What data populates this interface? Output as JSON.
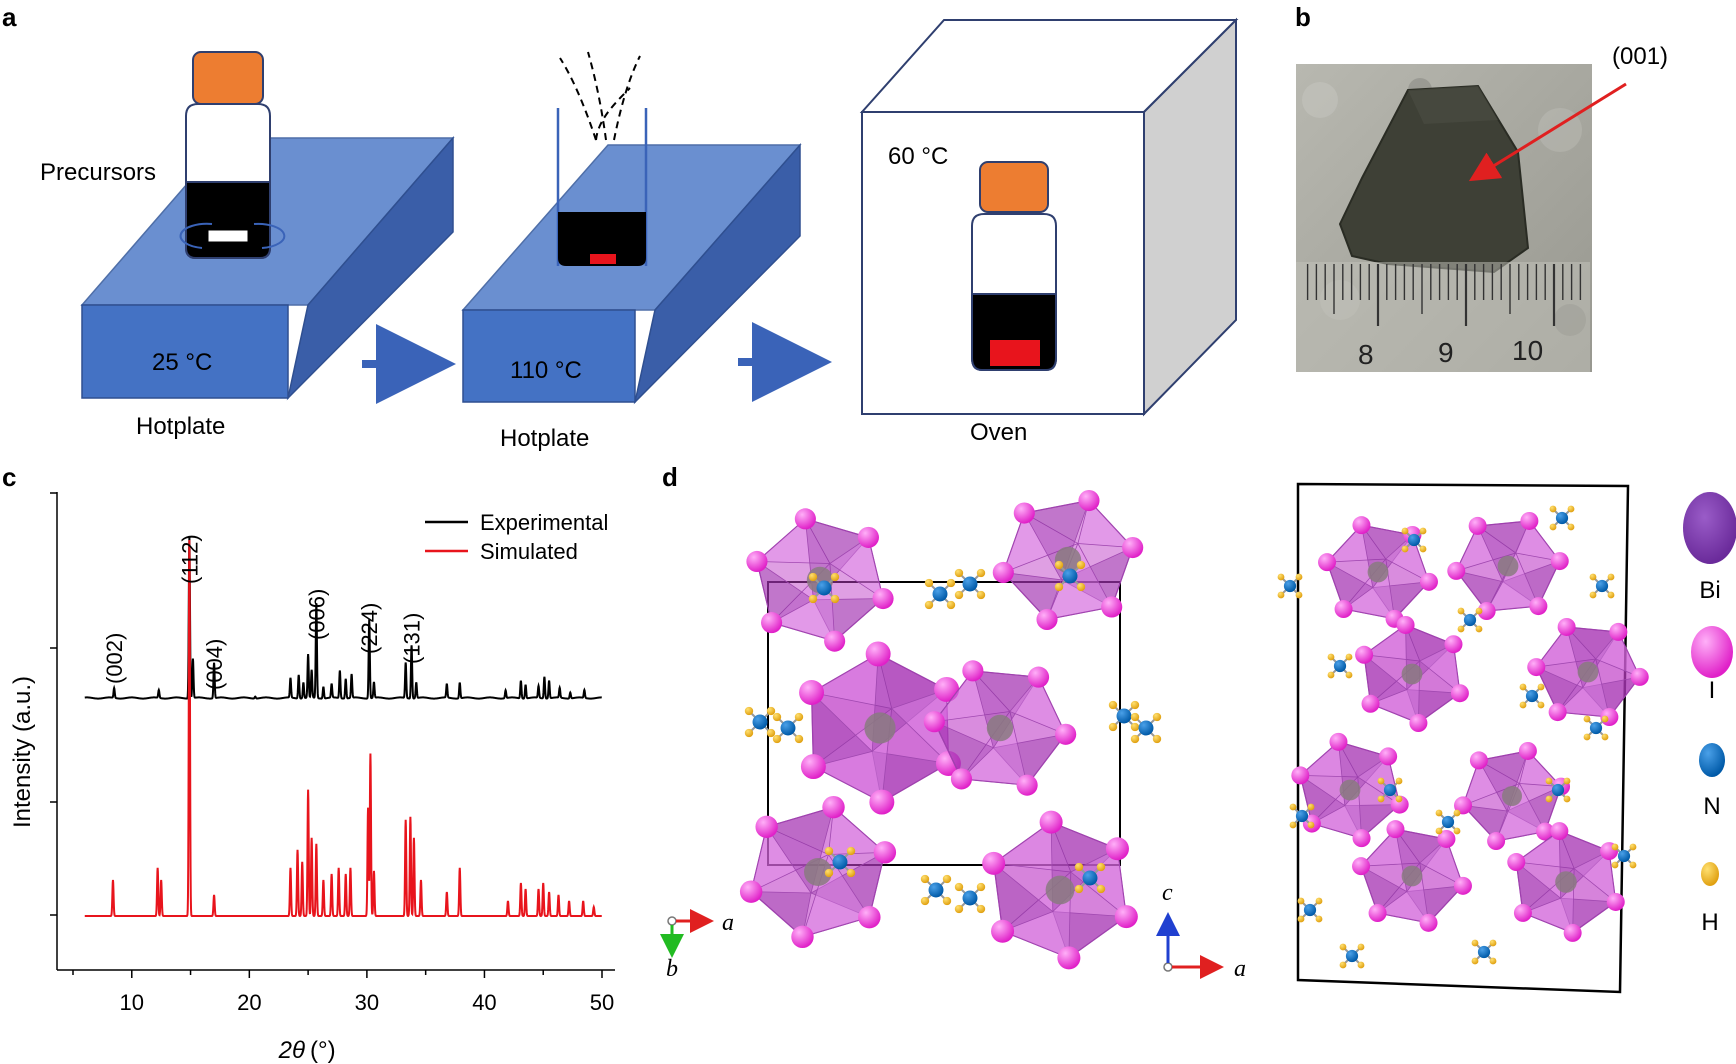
{
  "panels": {
    "a": "a",
    "b": "b",
    "c": "c",
    "d": "d"
  },
  "panel_a": {
    "precursors_label": "Precursors",
    "step1_temp": "25 °C",
    "step1_device": "Hotplate",
    "step2_temp": "110 °C",
    "step2_device": "Hotplate",
    "step3_temp": "60 °C",
    "step3_device": "Oven",
    "colors": {
      "hotplate_top": "#6a8fd0",
      "hotplate_front": "#4472c4",
      "hotplate_side": "#3a5ea8",
      "cap": "#ed7d31",
      "solution": "#000000",
      "crystal": "#e8141c"
    }
  },
  "panel_b": {
    "facet_label": "(001)",
    "ruler_labels": [
      "8",
      "9",
      "10"
    ],
    "arrow_color": "#e02020"
  },
  "chart_data": {
    "type": "line",
    "xlabel_symbol": "2θ",
    "xlabel_unit": "(°)",
    "ylabel": "Intensity (a.u.)",
    "xlim": [
      5,
      50
    ],
    "xticks": [
      10,
      20,
      30,
      40,
      50
    ],
    "legend_placement": "top-right",
    "grid": false,
    "series": [
      {
        "name": "Experimental",
        "color": "#000000",
        "baseline_offset": 1.0,
        "baseline": 0.02,
        "peaks": [
          [
            8.5,
            0.05
          ],
          [
            12.3,
            0.04
          ],
          [
            14.9,
            0.82
          ],
          [
            15.2,
            0.2
          ],
          [
            17.0,
            0.18
          ],
          [
            20.5,
            0.01
          ],
          [
            23.5,
            0.1
          ],
          [
            24.2,
            0.12
          ],
          [
            24.6,
            0.08
          ],
          [
            25.0,
            0.22
          ],
          [
            25.3,
            0.14
          ],
          [
            25.7,
            0.48
          ],
          [
            26.3,
            0.06
          ],
          [
            27.0,
            0.07
          ],
          [
            27.7,
            0.14
          ],
          [
            28.2,
            0.1
          ],
          [
            28.7,
            0.12
          ],
          [
            30.2,
            0.4
          ],
          [
            30.6,
            0.08
          ],
          [
            33.3,
            0.18
          ],
          [
            33.8,
            0.27
          ],
          [
            34.2,
            0.08
          ],
          [
            36.8,
            0.07
          ],
          [
            37.9,
            0.08
          ],
          [
            41.8,
            0.04
          ],
          [
            43.1,
            0.09
          ],
          [
            43.5,
            0.07
          ],
          [
            44.6,
            0.06
          ],
          [
            45.1,
            0.11
          ],
          [
            45.5,
            0.09
          ],
          [
            46.4,
            0.05
          ],
          [
            47.3,
            0.03
          ],
          [
            48.5,
            0.04
          ]
        ]
      },
      {
        "name": "Simulated",
        "color": "#e8141c",
        "baseline_offset": 0.0,
        "baseline": 0.0,
        "peaks": [
          [
            8.4,
            0.12
          ],
          [
            12.2,
            0.16
          ],
          [
            12.5,
            0.12
          ],
          [
            14.9,
            1.25
          ],
          [
            17.0,
            0.07
          ],
          [
            23.5,
            0.16
          ],
          [
            24.1,
            0.22
          ],
          [
            24.5,
            0.18
          ],
          [
            25.0,
            0.42
          ],
          [
            25.3,
            0.26
          ],
          [
            25.7,
            0.24
          ],
          [
            26.3,
            0.12
          ],
          [
            27.0,
            0.14
          ],
          [
            27.6,
            0.16
          ],
          [
            28.2,
            0.14
          ],
          [
            28.6,
            0.16
          ],
          [
            30.1,
            0.36
          ],
          [
            30.3,
            0.54
          ],
          [
            30.6,
            0.15
          ],
          [
            33.3,
            0.32
          ],
          [
            33.7,
            0.33
          ],
          [
            34.0,
            0.26
          ],
          [
            34.6,
            0.12
          ],
          [
            36.8,
            0.08
          ],
          [
            37.9,
            0.16
          ],
          [
            42.0,
            0.05
          ],
          [
            43.1,
            0.11
          ],
          [
            43.5,
            0.09
          ],
          [
            44.6,
            0.09
          ],
          [
            45.0,
            0.11
          ],
          [
            45.5,
            0.08
          ],
          [
            46.3,
            0.07
          ],
          [
            47.2,
            0.05
          ],
          [
            48.4,
            0.05
          ],
          [
            49.3,
            0.03
          ]
        ]
      }
    ],
    "annotations": [
      {
        "text": "(002)",
        "x": 8.5
      },
      {
        "text": "(112)",
        "x": 14.9
      },
      {
        "text": "(004)",
        "x": 17.0
      },
      {
        "text": "(006)",
        "x": 25.7
      },
      {
        "text": "(224)",
        "x": 30.2
      },
      {
        "text": "(131)",
        "x": 33.8
      }
    ]
  },
  "panel_d": {
    "left_axes": {
      "horizontal": "a",
      "vertical": "b"
    },
    "right_axes": {
      "horizontal": "a",
      "vertical": "c"
    },
    "legend": [
      {
        "label": "Bi",
        "color": "#7030a0"
      },
      {
        "label": "I",
        "color": "#ff33ee"
      },
      {
        "label": "N",
        "color": "#0070c0"
      },
      {
        "label": "H",
        "color": "#f0b020"
      }
    ],
    "octahedron_color": "#c040c8"
  }
}
